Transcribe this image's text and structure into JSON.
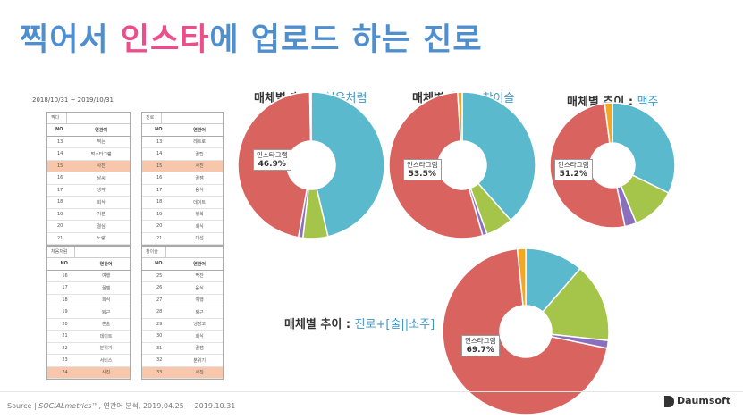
{
  "title": {
    "part1": "찍어서 ",
    "part2": "인스타",
    "part3": "에 업로드 하는 진로"
  },
  "date_range": "2018/10/31 ~ 2019/10/31",
  "tables": [
    {
      "name": "찍다",
      "col_no": "NO.",
      "col_word": "연관어",
      "rows": [
        [
          "13",
          "찍는"
        ],
        [
          "14",
          "먹스타그램"
        ],
        [
          "15",
          "사진"
        ],
        [
          "16",
          "날씨"
        ],
        [
          "17",
          "생각"
        ],
        [
          "18",
          "회식"
        ],
        [
          "19",
          "기분"
        ],
        [
          "20",
          "결심"
        ],
        [
          "21",
          "노랑"
        ]
      ],
      "highlight": 2
    },
    {
      "name": "진로",
      "col_no": "NO.",
      "col_word": "연관어",
      "rows": [
        [
          "13",
          "레트로"
        ],
        [
          "14",
          "꿀팁"
        ],
        [
          "15",
          "사진"
        ],
        [
          "16",
          "꿀잼"
        ],
        [
          "17",
          "음식"
        ],
        [
          "18",
          "데이트"
        ],
        [
          "19",
          "행복"
        ],
        [
          "20",
          "회식"
        ],
        [
          "21",
          "대선"
        ]
      ],
      "highlight": 2
    },
    {
      "name": "처음처럼",
      "col_no": "NO.",
      "col_word": "연관어",
      "rows": [
        [
          "16",
          "여행"
        ],
        [
          "17",
          "꿀잼"
        ],
        [
          "18",
          "회식"
        ],
        [
          "19",
          "퇴근"
        ],
        [
          "20",
          "혼술"
        ],
        [
          "21",
          "데이트"
        ],
        [
          "22",
          "분위기"
        ],
        [
          "23",
          "서비스"
        ],
        [
          "24",
          "사진"
        ]
      ],
      "highlight": 8
    },
    {
      "name": "참이슬",
      "col_no": "NO.",
      "col_word": "연관어",
      "rows": [
        [
          "25",
          "막잔"
        ],
        [
          "26",
          "음식"
        ],
        [
          "27",
          "여행"
        ],
        [
          "28",
          "퇴근"
        ],
        [
          "29",
          "냉장고"
        ],
        [
          "30",
          "회식"
        ],
        [
          "31",
          "꿀잼"
        ],
        [
          "32",
          "분위기"
        ],
        [
          "33",
          "사진"
        ]
      ],
      "highlight": 8
    }
  ],
  "charts": [
    {
      "prefix": "매체별 추이 : ",
      "brand": "처음처럼",
      "label_name": "인스타그램",
      "label_value": "46.9%"
    },
    {
      "prefix": "매체별 추이 : ",
      "brand": "참이슬",
      "label_name": "인스타그램",
      "label_value": "53.5%"
    },
    {
      "prefix": "매체별 추이 : ",
      "brand": "맥주",
      "label_name": "인스타그램",
      "label_value": "51.2%"
    },
    {
      "prefix": "매체별 추이 : ",
      "brand": "진로+[술||소주]",
      "label_name": "인스타그램",
      "label_value": "69.7%"
    }
  ],
  "chart_data": [
    {
      "type": "pie",
      "title": "매체별 추이 : 처음처럼",
      "values": [
        46.3,
        5.5,
        1.0,
        46.9,
        0.3
      ],
      "colors": [
        "#5ab9cc",
        "#a5c54a",
        "#8a6fbf",
        "#d9635e",
        "#f5a623"
      ]
    },
    {
      "type": "pie",
      "title": "매체별 추이 : 참이슬",
      "values": [
        38.5,
        6.0,
        1.0,
        53.5,
        1.0
      ],
      "colors": [
        "#5ab9cc",
        "#a5c54a",
        "#8a6fbf",
        "#d9635e",
        "#f5a623"
      ]
    },
    {
      "type": "pie",
      "title": "매체별 추이 : 맥주",
      "values": [
        32.3,
        11.5,
        3.0,
        51.2,
        2.0
      ],
      "colors": [
        "#5ab9cc",
        "#a5c54a",
        "#8a6fbf",
        "#d9635e",
        "#f5a623"
      ]
    },
    {
      "type": "pie",
      "title": "매체별 추이 : 진로+[술||소주]",
      "values": [
        11.3,
        15.3,
        1.5,
        69.7,
        1.6
      ],
      "colors": [
        "#5ab9cc",
        "#a5c54a",
        "#8a6fbf",
        "#d9635e",
        "#f5a623"
      ]
    }
  ],
  "source": {
    "prefix": "Source | ",
    "italic": "SOCIALmetrics™",
    "suffix": ", 연관어 분석, 2019.04.25 ~ 2019.10.31"
  },
  "logo": {
    "text": "Daumsoft"
  }
}
